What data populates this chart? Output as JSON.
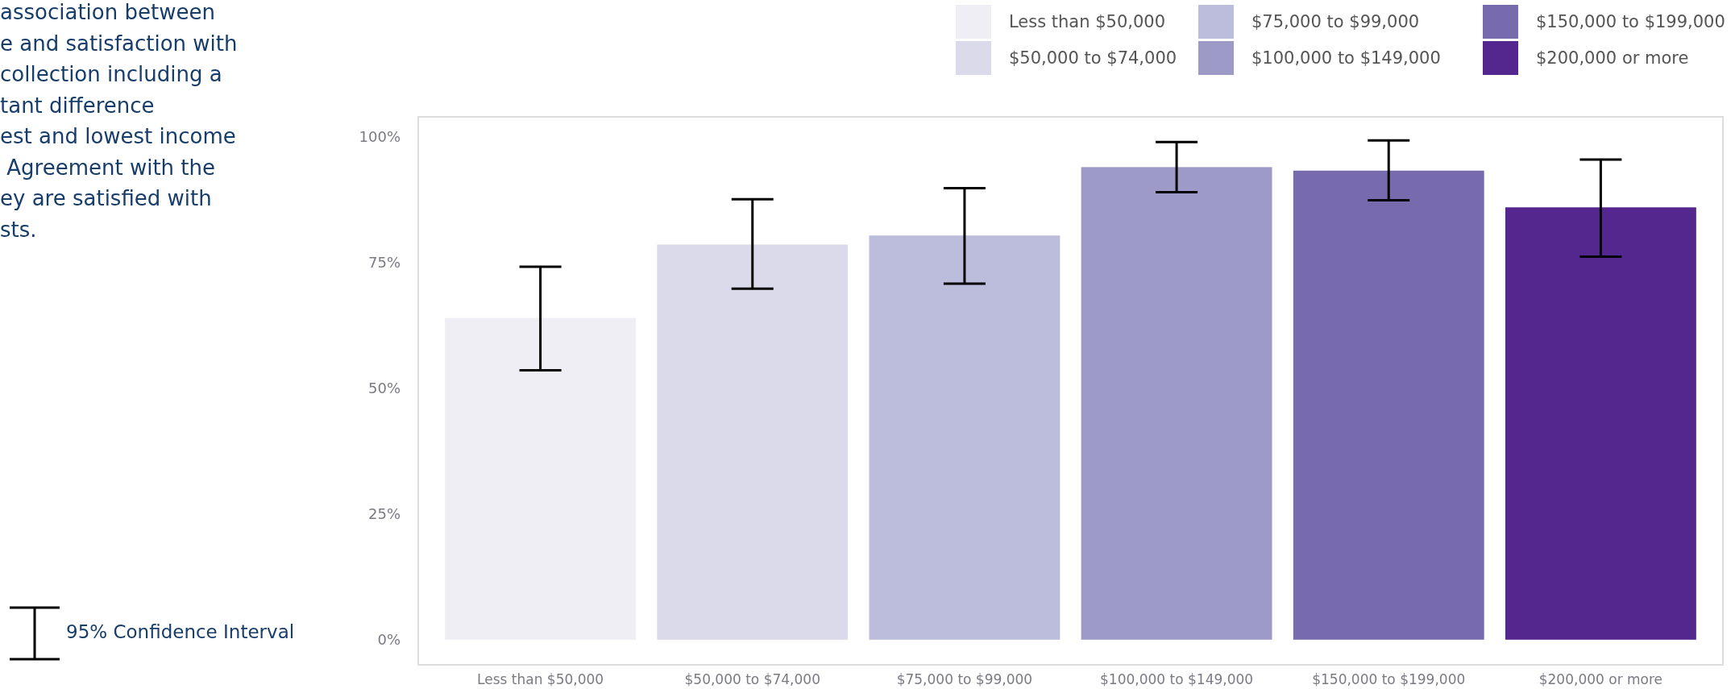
{
  "chart_data": {
    "type": "bar",
    "stacked": true,
    "categories": [
      "Less than $50,000",
      "$50,000 to $74,000",
      "$75,000 to $99,000",
      "$100,000 to $149,000",
      "$150,000 to $199,000",
      "$200,000 or more"
    ],
    "series": [
      {
        "name": "Less than $50,000",
        "color": "#efeef5",
        "values": [
          64,
          null,
          null,
          null,
          null,
          null
        ],
        "errors": [
          [
            53.6,
            74.2
          ],
          null,
          null,
          null,
          null,
          null
        ]
      },
      {
        "name": "$50,000 to $74,000",
        "color": "#dadaea",
        "values": [
          null,
          78.6,
          null,
          null,
          null,
          null
        ],
        "errors": [
          null,
          [
            69.8,
            87.6
          ],
          null,
          null,
          null,
          null
        ]
      },
      {
        "name": "$75,000 to $99,000",
        "color": "#bcbcdc",
        "values": [
          null,
          null,
          80.4,
          null,
          null,
          null
        ],
        "errors": [
          null,
          null,
          [
            70.8,
            89.8
          ],
          null,
          null,
          null
        ]
      },
      {
        "name": "$100,000 to $149,000",
        "color": "#9e9ac8",
        "values": [
          null,
          null,
          null,
          94,
          null,
          null
        ],
        "errors": [
          null,
          null,
          null,
          [
            89,
            99
          ],
          null,
          null
        ]
      },
      {
        "name": "$150,000 to $199,000",
        "color": "#776bae",
        "values": [
          null,
          null,
          null,
          null,
          93.3,
          null
        ],
        "errors": [
          null,
          null,
          null,
          null,
          [
            87.4,
            99.3
          ],
          null
        ]
      },
      {
        "name": "$200,000 or more",
        "color": "#54278f",
        "values": [
          null,
          null,
          null,
          null,
          null,
          86
        ],
        "errors": [
          null,
          null,
          null,
          null,
          null,
          [
            76.2,
            95.5
          ]
        ]
      }
    ],
    "ylim": [
      -5,
      104
    ],
    "yticks": [
      {
        "value": 0,
        "label": "0%"
      },
      {
        "value": 25,
        "label": "25%"
      },
      {
        "value": 50,
        "label": "50%"
      },
      {
        "value": 75,
        "label": "75%"
      },
      {
        "value": 100,
        "label": "100%"
      }
    ],
    "legend": "top right",
    "annotations": [
      "association between\ne and satisfaction with\ncollection including a\ntant difference\nest and lowest income\n Agreement with the\ney are satisfied with\nsts.",
      "95% Confidence Interval"
    ]
  }
}
